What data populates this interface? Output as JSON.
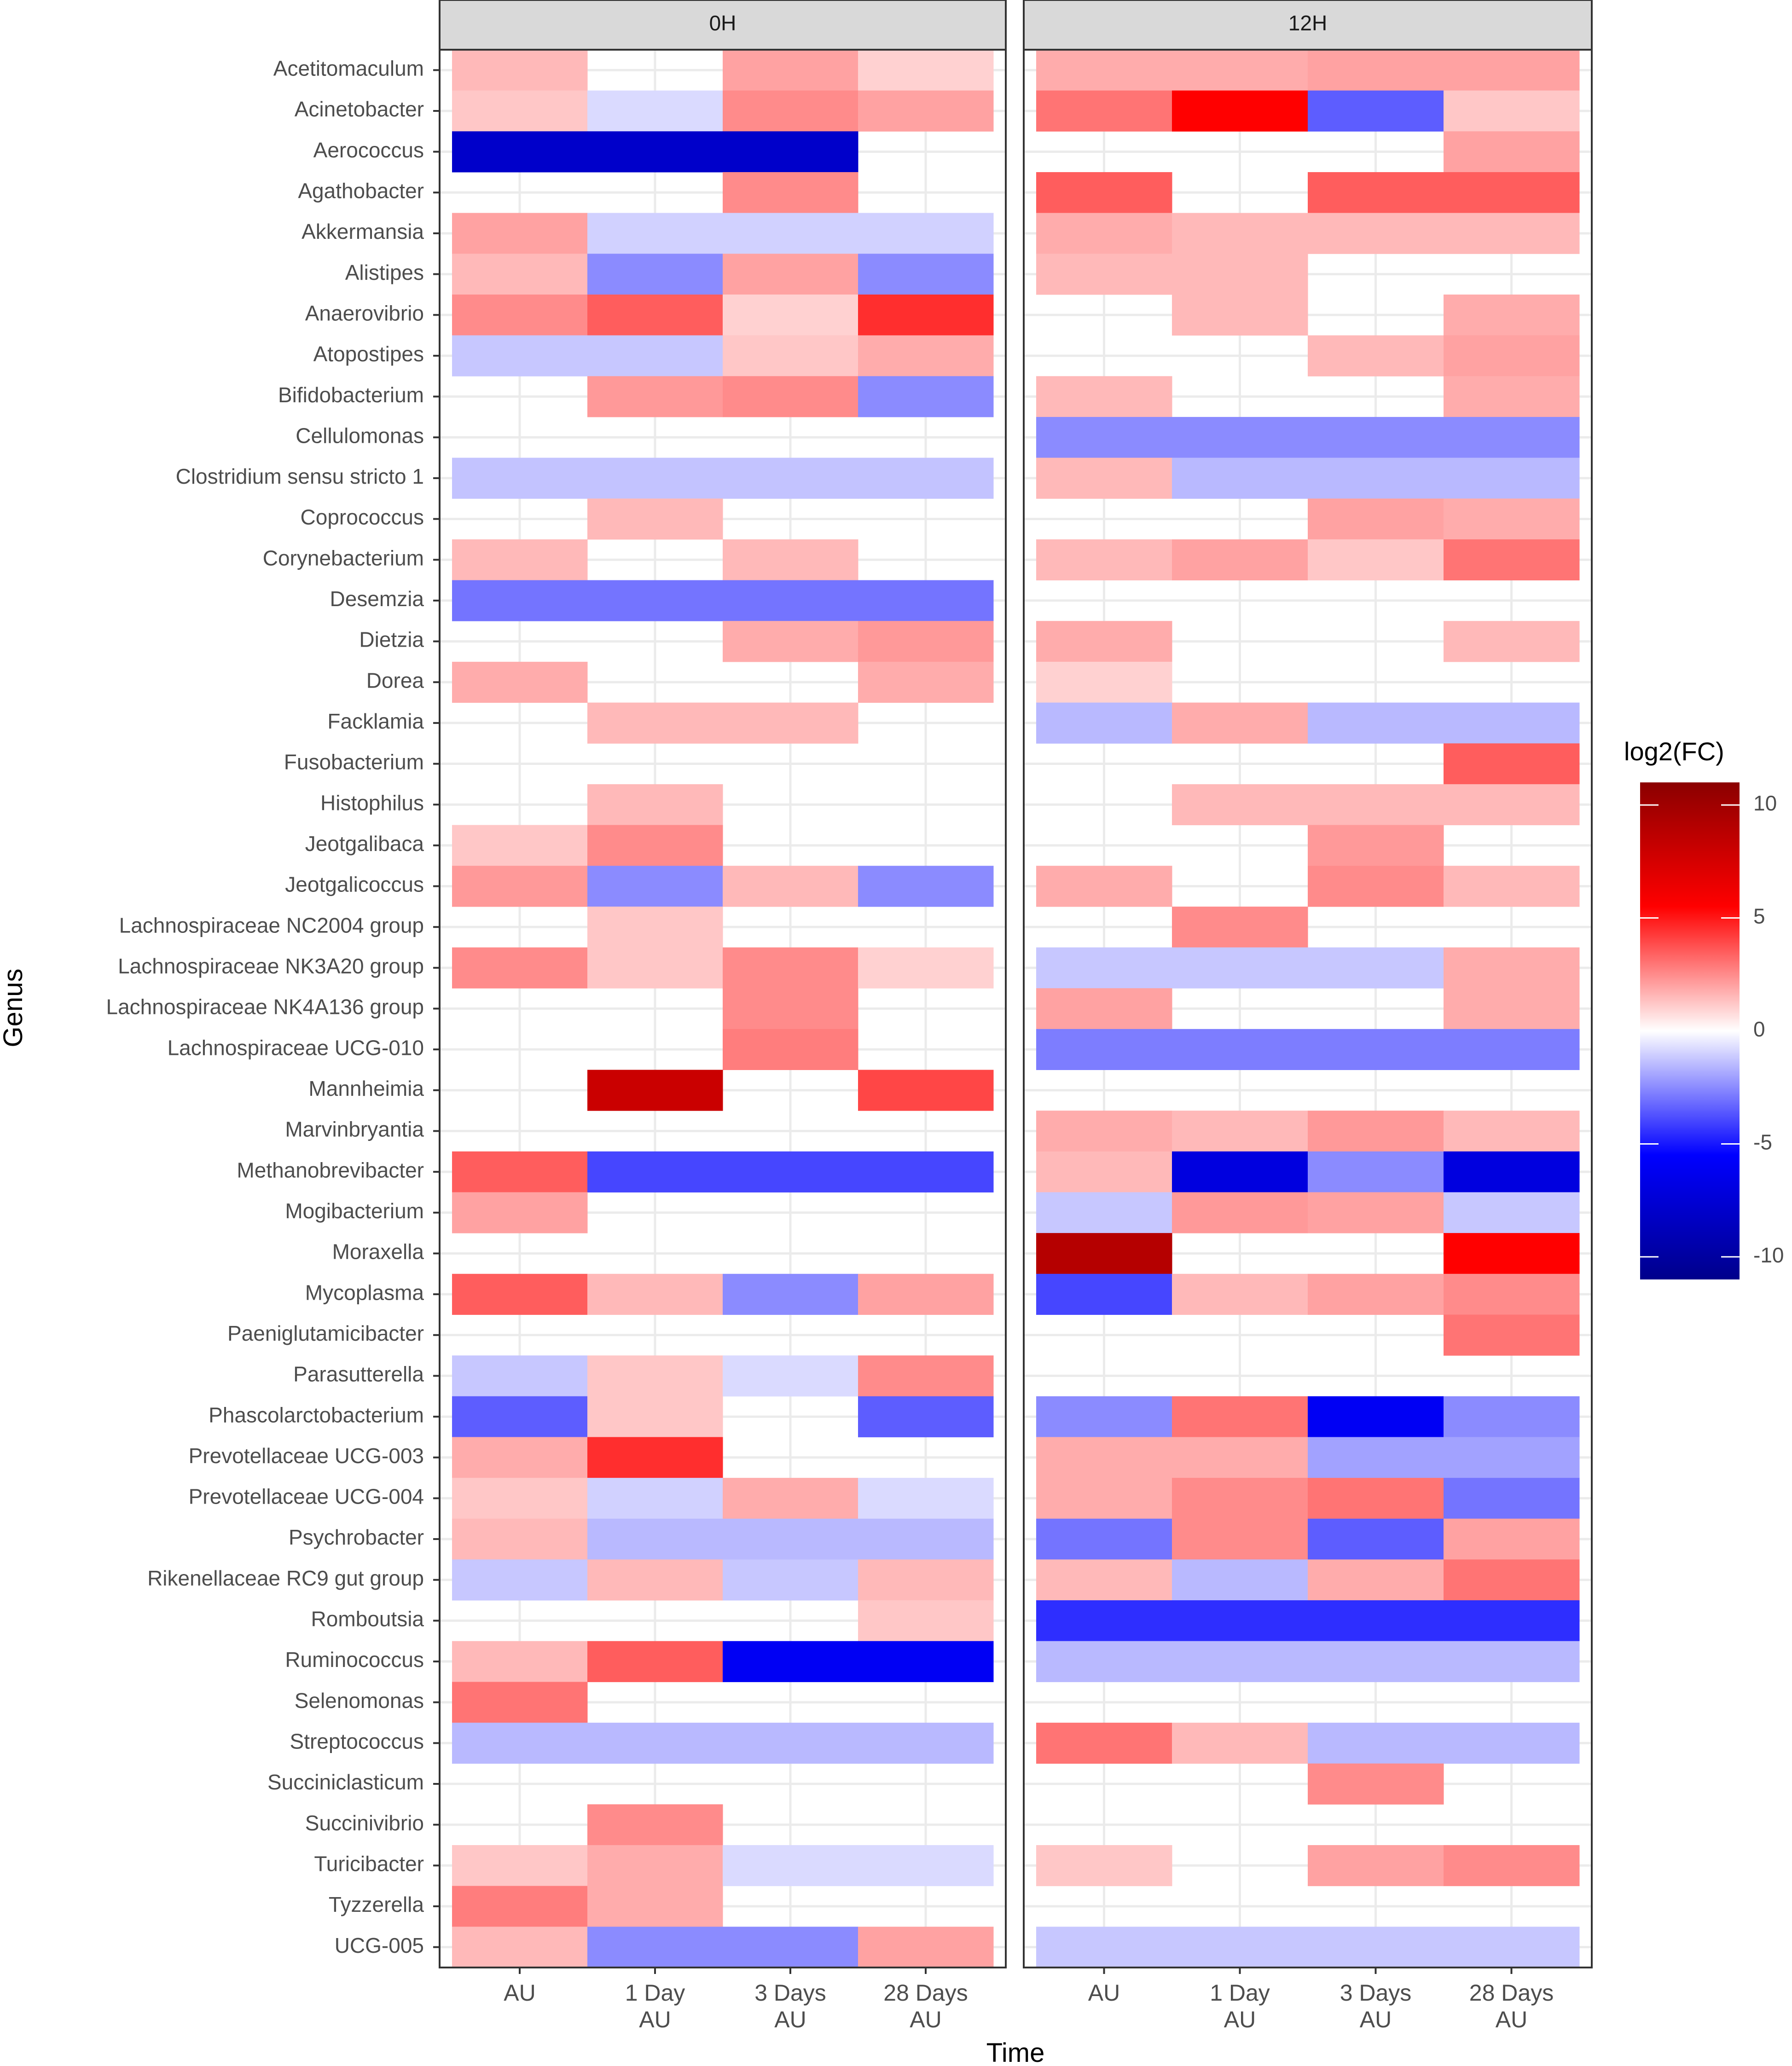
{
  "chart_data": {
    "type": "heatmap",
    "xlabel": "Time",
    "ylabel": "Genus",
    "panels": [
      "0H",
      "12H"
    ],
    "columns": [
      [
        "AU"
      ],
      [
        "1 Day",
        "AU"
      ],
      [
        "3 Days",
        "AU"
      ],
      [
        "28 Days",
        "AU"
      ]
    ],
    "genera": [
      "Acetitomaculum",
      "Acinetobacter",
      "Aerococcus",
      "Agathobacter",
      "Akkermansia",
      "Alistipes",
      "Anaerovibrio",
      "Atopostipes",
      "Bifidobacterium",
      "Cellulomonas",
      "Clostridium sensu stricto 1",
      "Coprococcus",
      "Corynebacterium",
      "Desemzia",
      "Dietzia",
      "Dorea",
      "Facklamia",
      "Fusobacterium",
      "Histophilus",
      "Jeotgalibaca",
      "Jeotgalicoccus",
      "Lachnospiraceae NC2004 group",
      "Lachnospiraceae NK3A20 group",
      "Lachnospiraceae NK4A136 group",
      "Lachnospiraceae UCG-010",
      "Mannheimia",
      "Marvinbryantia",
      "Methanobrevibacter",
      "Mogibacterium",
      "Moraxella",
      "Mycoplasma",
      "Paeniglutamicibacter",
      "Parasutterella",
      "Phascolarctobacterium",
      "Prevotellaceae UCG-003",
      "Prevotellaceae UCG-004",
      "Psychrobacter",
      "Rikenellaceae RC9 gut group",
      "Romboutsia",
      "Ruminococcus",
      "Selenomonas",
      "Streptococcus",
      "Succiniclasticum",
      "Succinivibrio",
      "Turicibacter",
      "Tyzzerella",
      "UCG-005"
    ],
    "values": {
      "0H": [
        [
          1.5,
          null,
          2,
          1
        ],
        [
          1.2,
          -0.8,
          2.5,
          2
        ],
        [
          -8,
          -8,
          -8,
          null
        ],
        [
          null,
          null,
          2.5,
          null
        ],
        [
          2,
          -1,
          -1,
          -1
        ],
        [
          1.5,
          -2.5,
          2,
          -2.5
        ],
        [
          2.5,
          3.5,
          1,
          4.5
        ],
        [
          -1.2,
          -1.2,
          1.2,
          1.8
        ],
        [
          null,
          2.2,
          2.5,
          -2.5
        ],
        [
          null,
          null,
          null,
          null
        ],
        [
          -1.3,
          -1.3,
          -1.3,
          -1.3
        ],
        [
          null,
          1.5,
          null,
          null
        ],
        [
          1.5,
          null,
          1.5,
          null
        ],
        [
          -3,
          -3,
          -3,
          -3
        ],
        [
          null,
          null,
          1.8,
          2.2
        ],
        [
          1.8,
          null,
          null,
          1.8
        ],
        [
          null,
          1.5,
          1.5,
          null
        ],
        [
          null,
          null,
          null,
          null
        ],
        [
          null,
          1.5,
          null,
          null
        ],
        [
          1.2,
          2.5,
          null,
          null
        ],
        [
          2.2,
          -2.5,
          1.5,
          -2.5
        ],
        [
          null,
          1.2,
          null,
          null
        ],
        [
          2.5,
          1.2,
          2.5,
          1
        ],
        [
          null,
          null,
          2.5,
          null
        ],
        [
          null,
          null,
          2.8,
          null
        ],
        [
          null,
          8,
          null,
          4
        ],
        [
          null,
          null,
          null,
          null
        ],
        [
          3.5,
          -4,
          -4,
          -4
        ],
        [
          2,
          null,
          null,
          null
        ],
        [
          null,
          null,
          null,
          null
        ],
        [
          3.5,
          1.5,
          -2.5,
          2
        ],
        [
          null,
          null,
          null,
          null
        ],
        [
          -1.2,
          1.2,
          -0.8,
          2.5
        ],
        [
          -3.5,
          1.2,
          null,
          -3.5
        ],
        [
          1.8,
          4.5,
          null,
          null
        ],
        [
          1.2,
          -1,
          1.8,
          -0.8
        ],
        [
          1.5,
          -1.5,
          -1.5,
          -1.5
        ],
        [
          -1.2,
          1.5,
          -1.2,
          1.5
        ],
        [
          null,
          null,
          null,
          1.2
        ],
        [
          1.5,
          3.5,
          -6,
          -6
        ],
        [
          3,
          null,
          null,
          null
        ],
        [
          -1.5,
          -1.5,
          -1.5,
          -1.5
        ],
        [
          null,
          null,
          null,
          null
        ],
        [
          null,
          2.5,
          null,
          null
        ],
        [
          1.2,
          1.8,
          -0.8,
          -0.8
        ],
        [
          2.8,
          1.8,
          null,
          null
        ],
        [
          1.5,
          -2.5,
          -2.5,
          2
        ]
      ],
      "12H": [
        [
          1.8,
          1.8,
          2,
          2
        ],
        [
          3,
          5.5,
          -3.5,
          1.2
        ],
        [
          null,
          null,
          null,
          2
        ],
        [
          3.5,
          null,
          3.5,
          3.5
        ],
        [
          1.8,
          1.5,
          1.5,
          1.5
        ],
        [
          1.5,
          1.5,
          null,
          null
        ],
        [
          null,
          1.5,
          null,
          1.8
        ],
        [
          null,
          null,
          1.5,
          2
        ],
        [
          1.5,
          null,
          null,
          1.8
        ],
        [
          -2.5,
          -2.5,
          -2.5,
          -2.5
        ],
        [
          1.5,
          -1.5,
          -1.5,
          -1.5
        ],
        [
          null,
          null,
          2,
          1.8
        ],
        [
          1.5,
          2,
          1.2,
          3
        ],
        [
          null,
          null,
          null,
          null
        ],
        [
          1.8,
          null,
          null,
          1.5
        ],
        [
          1,
          null,
          null,
          null
        ],
        [
          -1.5,
          1.8,
          -1.5,
          -1.5
        ],
        [
          null,
          null,
          null,
          3.5
        ],
        [
          null,
          1.5,
          1.5,
          1.5
        ],
        [
          null,
          null,
          2.2,
          null
        ],
        [
          1.8,
          null,
          2.5,
          1.5
        ],
        [
          null,
          2.5,
          null,
          null
        ],
        [
          -1.2,
          -1.2,
          -1.2,
          1.8
        ],
        [
          2,
          null,
          null,
          1.8
        ],
        [
          -2.8,
          -2.8,
          -2.8,
          -2.8
        ],
        [
          null,
          null,
          null,
          null
        ],
        [
          1.8,
          1.5,
          2.2,
          1.5
        ],
        [
          1.5,
          -7,
          -2.5,
          -7
        ],
        [
          -1.2,
          2.2,
          2,
          -1.2
        ],
        [
          9,
          null,
          null,
          5.5
        ],
        [
          -4,
          1.5,
          2,
          2.5
        ],
        [
          null,
          null,
          null,
          3
        ],
        [
          null,
          null,
          null,
          null
        ],
        [
          -2.5,
          3,
          -6,
          -2.5
        ],
        [
          1.8,
          1.8,
          -2,
          -2
        ],
        [
          1.8,
          2.5,
          3,
          -3
        ],
        [
          -3,
          2.5,
          -3.5,
          2
        ],
        [
          1.5,
          -1.5,
          1.8,
          3
        ],
        [
          -4.5,
          -4.5,
          -4.5,
          -4.5
        ],
        [
          -1.5,
          -1.5,
          -1.5,
          -1.5
        ],
        [
          null,
          null,
          null,
          null
        ],
        [
          3,
          1.5,
          -1.5,
          -1.5
        ],
        [
          null,
          null,
          2.5,
          null
        ],
        [
          null,
          null,
          null,
          null
        ],
        [
          1.2,
          null,
          2,
          2.5
        ],
        [
          null,
          null,
          null,
          null
        ],
        [
          -1.2,
          -1.2,
          -1.2,
          -1.2
        ]
      ]
    },
    "legend": {
      "title": "log2(FC)",
      "ticks": [
        "10",
        "5",
        "0",
        "-5",
        "-10"
      ],
      "tick_values": [
        10,
        5,
        0,
        -5,
        -10
      ],
      "limits": [
        -11,
        11
      ],
      "colors": {
        "low": "#00008b",
        "mid_low": "#0000ff",
        "mid": "#ffffff",
        "mid_high": "#ff0000",
        "high": "#8b0000"
      }
    },
    "style": {
      "panel_border": "#333333",
      "strip_fill": "#d9d9d9",
      "grid": "#ebebeb"
    }
  }
}
